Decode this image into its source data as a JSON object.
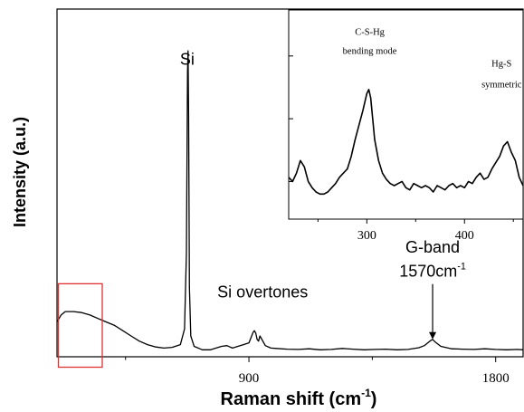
{
  "chart_data": [
    {
      "type": "line",
      "title": "",
      "xlabel": "Raman shift (cm",
      "xlabel_sup": "-1",
      "xlabel_tail": ")",
      "ylabel": "Intensity (a.u.)",
      "xlim": [
        200,
        1900
      ],
      "ylim": [
        0,
        100
      ],
      "xticks_labeled": [
        900,
        1800
      ],
      "xticks_minor": [
        450,
        1350
      ],
      "series": [
        {
          "x": [
            200,
            215,
            230,
            260,
            290,
            320,
            350,
            380,
            410,
            440,
            470,
            500,
            530,
            560,
            590,
            620,
            650,
            665,
            672,
            676,
            678,
            680,
            683,
            688,
            700,
            730,
            760,
            800,
            820,
            840,
            860,
            880,
            900,
            915,
            920,
            925,
            930,
            935,
            940,
            960,
            980,
            1000,
            1040,
            1080,
            1120,
            1160,
            1200,
            1240,
            1280,
            1320,
            1360,
            1400,
            1440,
            1480,
            1520,
            1540,
            1560,
            1570,
            1580,
            1600,
            1640,
            1680,
            1720,
            1760,
            1800,
            1840,
            1880,
            1900
          ],
          "y": [
            10,
            12,
            13,
            13,
            12.7,
            12,
            11,
            10,
            9,
            7.5,
            6,
            4.5,
            3.5,
            2.8,
            2.5,
            2.7,
            3.5,
            8,
            30,
            82,
            88,
            70,
            20,
            6,
            3,
            2,
            2,
            3,
            3.2,
            2.5,
            3,
            3.5,
            4,
            7,
            7.5,
            6.8,
            5,
            4.5,
            6,
            3.2,
            2.5,
            2.4,
            2.2,
            2.1,
            2.3,
            2,
            2.1,
            2.4,
            2.2,
            2,
            2.1,
            2.2,
            2,
            2.1,
            2.6,
            3.2,
            4.5,
            5,
            4.2,
            3,
            2.3,
            2.2,
            2.1,
            2.3,
            2.1,
            2,
            2.1,
            2
          ]
        }
      ],
      "annotations": [
        {
          "text": "Si",
          "x": 675,
          "y": 84
        },
        {
          "text": "Si  overtones",
          "x": 950,
          "y": 17
        },
        {
          "text": "G-band",
          "x": 1570,
          "y": 30
        },
        {
          "text": "1570cm",
          "sup": "-1",
          "x": 1570,
          "y": 23,
          "arrow_to_y": 5
        },
        {
          "text": "",
          "box_x": [
            205,
            365
          ],
          "box_y": [
            -3,
            21
          ],
          "color": "#e03030"
        }
      ]
    },
    {
      "type": "line",
      "title": "",
      "xlim": [
        220,
        460
      ],
      "ylim": [
        0,
        100
      ],
      "xticks_labeled": [
        300,
        400
      ],
      "xticks_minor": [
        250,
        350,
        450
      ],
      "series": [
        {
          "x": [
            220,
            224,
            228,
            232,
            236,
            240,
            244,
            248,
            252,
            256,
            260,
            264,
            268,
            272,
            276,
            280,
            284,
            288,
            292,
            296,
            300,
            302,
            304,
            306,
            308,
            312,
            316,
            320,
            324,
            328,
            332,
            336,
            340,
            344,
            348,
            352,
            356,
            360,
            364,
            368,
            372,
            376,
            380,
            384,
            388,
            392,
            396,
            400,
            404,
            408,
            412,
            416,
            420,
            424,
            428,
            432,
            436,
            440,
            444,
            448,
            452,
            456,
            460
          ],
          "y": [
            20,
            18,
            22,
            28,
            25,
            18,
            15,
            13,
            12,
            12,
            13,
            15,
            17,
            20,
            22,
            24,
            30,
            38,
            45,
            52,
            60,
            62,
            58,
            48,
            38,
            28,
            22,
            19,
            17,
            16,
            17,
            18,
            15,
            14,
            17,
            16,
            15,
            16,
            15,
            13,
            16,
            15,
            14,
            16,
            17,
            15,
            16,
            15,
            18,
            17,
            20,
            22,
            19,
            20,
            24,
            27,
            30,
            35,
            37,
            32,
            28,
            20,
            16
          ]
        }
      ],
      "annotations": [
        {
          "text": "C-S-Hg",
          "x": 303,
          "y": 88
        },
        {
          "text": "bending mode",
          "x": 303,
          "y": 79
        },
        {
          "text": "Hg-S",
          "x": 438,
          "y": 73
        },
        {
          "text": "symmetric",
          "x": 438,
          "y": 63
        }
      ]
    }
  ]
}
